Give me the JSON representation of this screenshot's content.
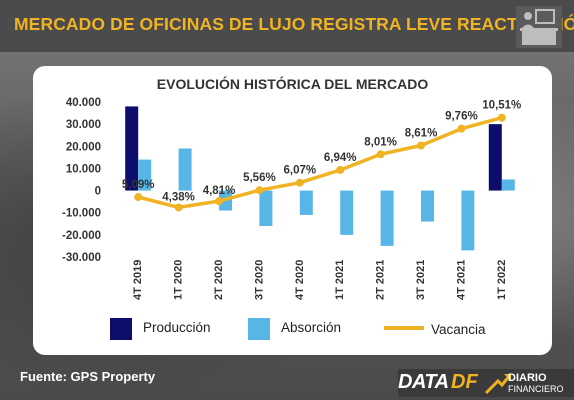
{
  "header": {
    "title": "MERCADO DE OFICINAS DE LUJO REGISTRA LEVE REACTIVACIÓN",
    "icon": "office-worker-icon"
  },
  "footer": {
    "source": "Fuente: GPS Property",
    "brand_data": "DATA",
    "brand_df": "DF",
    "brand_diario": "DIARIO",
    "brand_financiero": "FINANCIERO"
  },
  "colors": {
    "produccion": "#0d0d6b",
    "absorcion": "#58b6e6",
    "vacancia": "#f0b323",
    "accent": "#f0b323"
  },
  "chart_data": {
    "type": "bar",
    "title": "EVOLUCIÓN HISTÓRICA DEL MERCADO",
    "categories": [
      "4T 2019",
      "1T 2020",
      "2T 2020",
      "3T 2020",
      "4T 2020",
      "1T 2021",
      "2T 2021",
      "3T 2021",
      "4T 2021",
      "1T 2022"
    ],
    "series": [
      {
        "name": "Producción",
        "type": "bar",
        "color": "#0d0d6b",
        "values": [
          38000,
          0,
          0,
          0,
          0,
          0,
          0,
          0,
          0,
          30000
        ]
      },
      {
        "name": "Absorción",
        "type": "bar",
        "color": "#58b6e6",
        "values": [
          14000,
          19000,
          -9000,
          -16000,
          -11000,
          -20000,
          -25000,
          -14000,
          -27000,
          5000
        ]
      },
      {
        "name": "Vacancia",
        "type": "line",
        "color": "#f0b323",
        "values": [
          5.09,
          4.38,
          4.81,
          5.56,
          6.07,
          6.94,
          8.01,
          8.61,
          9.76,
          10.51
        ],
        "labels": [
          "5,09%",
          "4,38%",
          "4,81%",
          "5,56%",
          "6,07%",
          "6,94%",
          "8,01%",
          "8,61%",
          "9,76%",
          "10,51%"
        ]
      }
    ],
    "yticks": [
      "40.000",
      "30.000",
      "20.000",
      "10.000",
      "0",
      "-10.000",
      "-20.000",
      "-30.000"
    ],
    "ytick_values": [
      40000,
      30000,
      20000,
      10000,
      0,
      -10000,
      -20000,
      -30000
    ],
    "ylim": [
      -30000,
      40000
    ],
    "legend": [
      "Producción",
      "Absorción",
      "Vacancia"
    ],
    "legend_position": "bottom",
    "grid": false
  }
}
